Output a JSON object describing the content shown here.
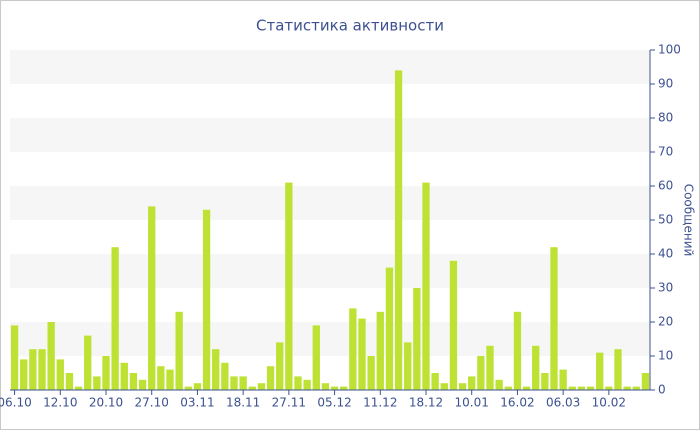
{
  "chart_data": {
    "type": "bar",
    "title": "Статистика активности",
    "y_label": "Сообщений",
    "categories": [
      "06.10",
      null,
      null,
      null,
      null,
      "12.10",
      null,
      null,
      null,
      null,
      "20.10",
      null,
      null,
      null,
      null,
      "27.10",
      null,
      null,
      null,
      null,
      "03.11",
      null,
      null,
      null,
      null,
      "18.11",
      null,
      null,
      null,
      null,
      "27.11",
      null,
      null,
      null,
      null,
      "05.12",
      null,
      null,
      null,
      null,
      "11.12",
      null,
      null,
      null,
      null,
      "18.12",
      null,
      null,
      null,
      null,
      "10.01",
      null,
      null,
      null,
      null,
      "16.02",
      null,
      null,
      null,
      null,
      "06.03",
      null,
      null,
      null,
      null,
      "10.02",
      null,
      null,
      null,
      null
    ],
    "values": [
      19,
      9,
      12,
      12,
      20,
      9,
      5,
      1,
      16,
      4,
      10,
      42,
      8,
      5,
      3,
      54,
      7,
      6,
      23,
      1,
      2,
      53,
      12,
      8,
      4,
      4,
      1,
      2,
      7,
      14,
      61,
      4,
      3,
      19,
      2,
      1,
      1,
      24,
      21,
      10,
      23,
      36,
      94,
      14,
      30,
      61,
      5,
      2,
      38,
      2,
      4,
      10,
      13,
      3,
      1,
      23,
      1,
      13,
      5,
      42,
      6,
      1,
      1,
      1,
      11,
      1,
      12,
      1,
      1,
      5
    ],
    "color": "#bde234",
    "ylim": [
      0,
      100
    ],
    "yticks": [
      0,
      10,
      20,
      30,
      40,
      50,
      60,
      70,
      80,
      90,
      100
    ],
    "grid_bands": true,
    "y_axis_side": "right"
  }
}
